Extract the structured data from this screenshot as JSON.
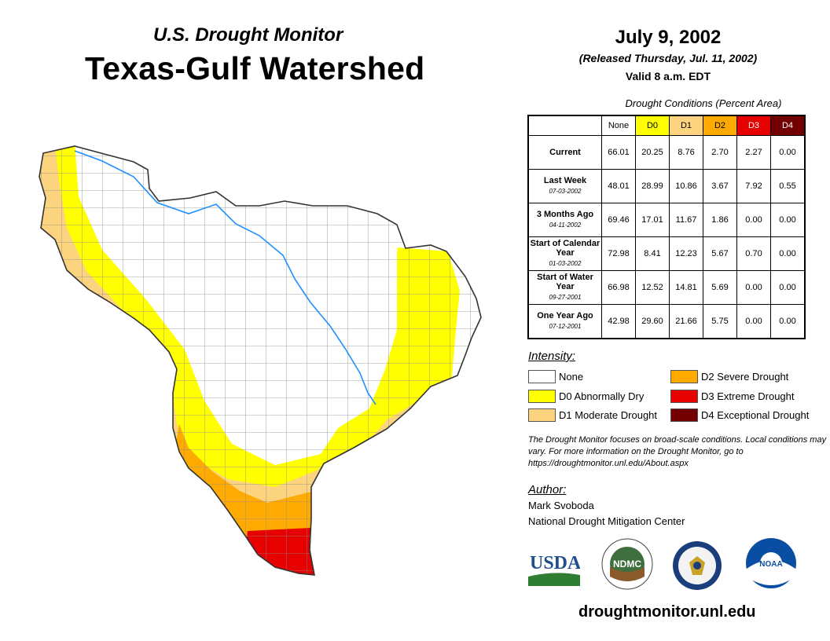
{
  "header": {
    "subtitle": "U.S. Drought Monitor",
    "title": "Texas-Gulf Watershed",
    "date": "July 9, 2002",
    "released": "(Released Thursday, Jul. 11, 2002)",
    "valid": "Valid 8 a.m. EDT"
  },
  "table": {
    "caption": "Drought Conditions (Percent Area)",
    "columns": [
      "None",
      "D0",
      "D1",
      "D2",
      "D3",
      "D4"
    ],
    "rows": [
      {
        "label": "Current",
        "date": "",
        "values": [
          "66.01",
          "20.25",
          "8.76",
          "2.70",
          "2.27",
          "0.00"
        ]
      },
      {
        "label": "Last Week",
        "date": "07-03-2002",
        "values": [
          "48.01",
          "28.99",
          "10.86",
          "3.67",
          "7.92",
          "0.55"
        ]
      },
      {
        "label": "3 Months Ago",
        "date": "04-11-2002",
        "values": [
          "69.46",
          "17.01",
          "11.67",
          "1.86",
          "0.00",
          "0.00"
        ]
      },
      {
        "label": "Start of Calendar Year",
        "date": "01-03-2002",
        "values": [
          "72.98",
          "8.41",
          "12.23",
          "5.67",
          "0.70",
          "0.00"
        ]
      },
      {
        "label": "Start of Water Year",
        "date": "09-27-2001",
        "values": [
          "66.98",
          "12.52",
          "14.81",
          "5.69",
          "0.00",
          "0.00"
        ]
      },
      {
        "label": "One Year Ago",
        "date": "07-12-2001",
        "values": [
          "42.98",
          "29.60",
          "21.66",
          "5.75",
          "0.00",
          "0.00"
        ]
      }
    ]
  },
  "legend": {
    "title": "Intensity:",
    "items": [
      {
        "label": "None",
        "color": "#ffffff"
      },
      {
        "label": "D0 Abnormally Dry",
        "color": "#ffff00"
      },
      {
        "label": "D1 Moderate Drought",
        "color": "#fcd37f"
      },
      {
        "label": "D2 Severe Drought",
        "color": "#ffaa00"
      },
      {
        "label": "D3 Extreme Drought",
        "color": "#e60000"
      },
      {
        "label": "D4 Exceptional Drought",
        "color": "#730000"
      }
    ]
  },
  "note": "The Drought Monitor focuses on broad-scale conditions. Local conditions may vary. For more information on the Drought Monitor, go to https://droughtmonitor.unl.edu/About.aspx",
  "author": {
    "heading": "Author:",
    "name": "Mark Svoboda",
    "org": "National Drought Mitigation Center"
  },
  "logos": {
    "usda": "USDA",
    "ndmc": "NDMC",
    "noaa": "NOAA"
  },
  "footer_url": "droughtmonitor.unl.edu"
}
